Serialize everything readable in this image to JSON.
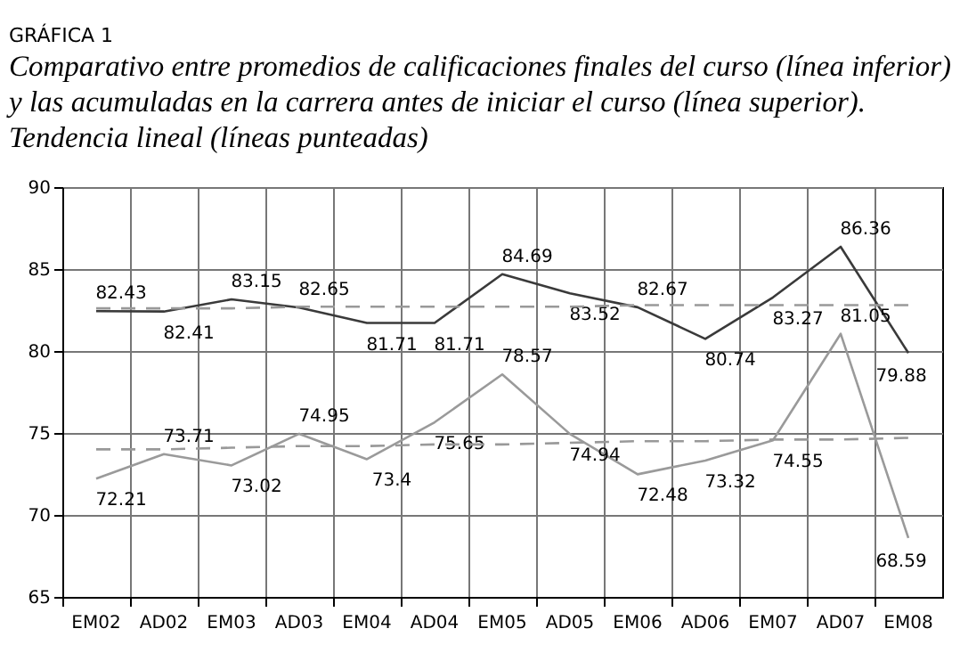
{
  "chart_data": {
    "type": "line",
    "title": "GRÁFICA 1",
    "subtitle": "Comparativo entre promedios de calificaciones finales del curso (línea inferior)\ny las acumuladas en la carrera antes de iniciar el curso (línea superior).\nTendencia lineal (líneas punteadas)",
    "categories": [
      "EM02",
      "AD02",
      "EM03",
      "AD03",
      "EM04",
      "AD04",
      "EM05",
      "AD05",
      "EM06",
      "AD06",
      "EM07",
      "AD07",
      "EM08"
    ],
    "series": [
      {
        "color": "#3a3a3a",
        "line_style": "solid",
        "values": [
          82.43,
          82.41,
          83.15,
          82.65,
          81.71,
          81.71,
          84.69,
          83.52,
          82.67,
          80.74,
          83.27,
          86.36,
          79.88
        ],
        "value_labels": [
          "82.43",
          "82.41",
          "83.15",
          "82.65",
          "81.71",
          "81.71",
          "84.69",
          "83.52",
          "82.67",
          "80.74",
          "83.27",
          "86.36",
          "79.88"
        ]
      },
      {
        "color": "#9a9a9a",
        "line_style": "solid",
        "values": [
          72.21,
          73.71,
          73.02,
          74.95,
          73.4,
          75.65,
          78.57,
          74.94,
          72.48,
          73.32,
          74.55,
          81.05,
          68.59
        ],
        "value_labels": [
          "72.21",
          "73.71",
          "73.02",
          "74.95",
          "73.4",
          "75.65",
          "78.57",
          "74.94",
          "72.48",
          "73.32",
          "74.55",
          "81.05",
          "68.59"
        ]
      },
      {
        "color": "#999999",
        "line_style": "dashed",
        "values": [
          82.6,
          82.6,
          82.6,
          82.7,
          82.7,
          82.7,
          82.7,
          82.7,
          82.8,
          82.8,
          82.8,
          82.8,
          82.8
        ]
      },
      {
        "color": "#999999",
        "line_style": "dashed",
        "values": [
          74.0,
          74.0,
          74.1,
          74.2,
          74.2,
          74.3,
          74.3,
          74.4,
          74.5,
          74.5,
          74.6,
          74.6,
          74.7
        ]
      }
    ],
    "ylim": [
      65,
      90
    ],
    "yticks": [
      65,
      70,
      75,
      80,
      85,
      90
    ],
    "grid": true
  }
}
